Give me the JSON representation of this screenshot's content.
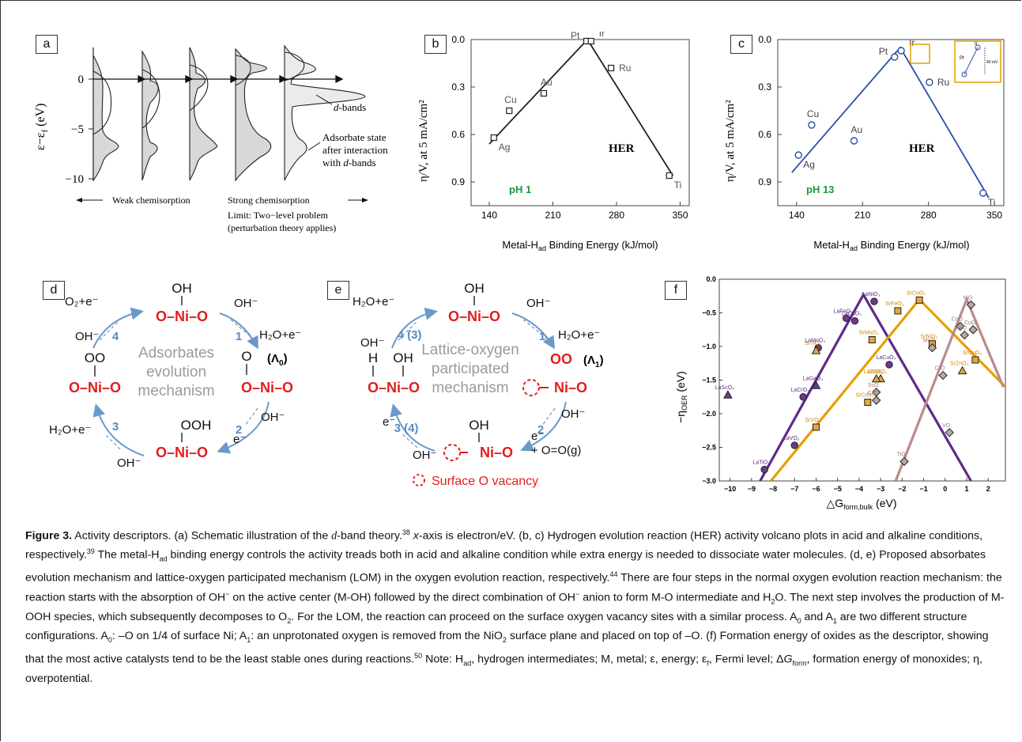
{
  "figure": {
    "labels": {
      "a": "a",
      "b": "b",
      "c": "c",
      "d": "d",
      "e": "e",
      "f": "f"
    }
  },
  "panel_a": {
    "ylabel": "ε−ε",
    "ylabel_sub": "f",
    "ylabel_unit": "(eV)",
    "yticks": [
      "0",
      "−5",
      "−10"
    ],
    "annot_dbands_pre": "d",
    "annot_dbands_post": "-bands",
    "annot_ads1": "Adsorbate state",
    "annot_ads2": "after interaction",
    "annot_ads3_pre": "with ",
    "annot_ads3_d": "d",
    "annot_ads3_post": "-bands",
    "weak": "Weak chemisorption",
    "strong": "Strong chemisorption",
    "limit1": "Limit: Two−level problem",
    "limit2": "(perturbation theory applies)"
  },
  "panel_b": {
    "xlabel_pre": "Metal-H",
    "xlabel_sub": "ad",
    "xlabel_post": " Binding Energy (kJ/mol)",
    "ylabel": "η/V, at 5 mA/cm²",
    "reaction": "HER",
    "ph": "pH  1",
    "xticks": [
      "140",
      "210",
      "280",
      "350"
    ],
    "yticks": [
      "0.0",
      "0.3",
      "0.6",
      "0.9"
    ]
  },
  "panel_c": {
    "xlabel_pre": "Metal-H",
    "xlabel_sub": "ad",
    "xlabel_post": " Binding Energy (kJ/mol)",
    "ylabel": "η/V, at 5 mA/cm²",
    "reaction": "HER",
    "ph": "pH  13",
    "xticks": [
      "140",
      "210",
      "280",
      "350"
    ],
    "yticks": [
      "0.0",
      "0.3",
      "0.6",
      "0.9"
    ],
    "inset_pt": "Pt",
    "inset_ir": "Ir",
    "inset_mv": "40 mV"
  },
  "panel_d": {
    "top_oh": "OH",
    "top": "O–Ni–O",
    "right_o": "O",
    "right_lambda": "(Λ",
    "right_lambda_sub": "0",
    "right_lambda_close": ")",
    "right": "O–Ni–O",
    "bottom_ooh": "OOH",
    "bottom": "O–Ni–O",
    "left_oo": "OO",
    "left": "O–Ni–O",
    "center1": "Adsorbates",
    "center2": "evolution",
    "center3": "mechanism",
    "step1": "1",
    "step2": "2",
    "step3": "3",
    "step4": "4",
    "r_top_left": "O₂+e⁻",
    "r_top_right": "OH⁻",
    "r_right_top": "H₂O+e⁻",
    "r_right_bottom": "OH⁻",
    "r_bottom_right": "e⁻",
    "r_bottom_left": "OH⁻",
    "r_left_bottom": "H₂O+e⁻",
    "r_left_top": "OH⁻"
  },
  "panel_e": {
    "top_oh": "OH",
    "top": "O–Ni–O",
    "right_oo": "OO",
    "right_lambda": "(Λ",
    "right_lambda_sub": "1",
    "right_lambda_close": ")",
    "right_nio": "Ni–O",
    "bottom_oh": "OH",
    "bottom_nio": "Ni–O",
    "left_h": "H",
    "left_oh": "OH",
    "left": "O–Ni–O",
    "center1": "Lattice-oxygen",
    "center2": "participated",
    "center3": "mechanism",
    "step_tl": "4 (3)",
    "step_tr": "1",
    "step_br": "2",
    "step_bl": "3 (4)",
    "r_top_left": "H₂O+e⁻",
    "r_top_right": "OH⁻",
    "r_right_top": "H₂O+e⁻",
    "r_right_bottom": "OH⁻",
    "r_bottom_right1": "e⁻",
    "r_bottom_right2": "+ O=O(g)",
    "r_bottom_left": "OH⁻",
    "r_left_bottom": "e⁻",
    "r_left_top": "OH⁻",
    "vacancy_legend": "Surface O vacancy"
  },
  "panel_f": {
    "ylabel": "−η",
    "ylabel_sub": "OER",
    "ylabel_unit": " (eV)",
    "xlabel_pre": "△G",
    "xlabel_sub": "form,bulk",
    "xlabel_post": " (eV)",
    "xticks": [
      "−10",
      "−9",
      "−8",
      "−7",
      "−6",
      "−5",
      "−4",
      "−3",
      "−2",
      "−1",
      "0",
      "1",
      "2"
    ],
    "yticks": [
      "0.0",
      "−0.5",
      "−1.0",
      "−1.5",
      "−2.0",
      "−2.5",
      "−3.0"
    ]
  },
  "chart_data": [
    {
      "type": "scatter",
      "panel": "b",
      "xlabel": "Metal-Had Binding Energy (kJ/mol)",
      "ylabel": "η/V, at 5 mA/cm²",
      "xlim": [
        120,
        360
      ],
      "ylim": [
        0.0,
        1.05
      ],
      "y_inverted": true,
      "points": [
        {
          "label": "Ag",
          "x": 145,
          "y": 0.62
        },
        {
          "label": "Cu",
          "x": 162,
          "y": 0.45
        },
        {
          "label": "Au",
          "x": 200,
          "y": 0.34
        },
        {
          "label": "Pt",
          "x": 247,
          "y": 0.01
        },
        {
          "label": "Ir",
          "x": 252,
          "y": 0.01
        },
        {
          "label": "Ru",
          "x": 274,
          "y": 0.18
        },
        {
          "label": "Ti",
          "x": 338,
          "y": 0.86
        }
      ],
      "volcano": [
        [
          140,
          0.66
        ],
        [
          248,
          0.0
        ],
        [
          342,
          0.86
        ]
      ]
    },
    {
      "type": "scatter",
      "panel": "c",
      "xlabel": "Metal-Had Binding Energy (kJ/mol)",
      "ylabel": "η/V, at 5 mA/cm²",
      "xlim": [
        120,
        360
      ],
      "ylim": [
        0.0,
        1.05
      ],
      "y_inverted": true,
      "points": [
        {
          "label": "Ag",
          "x": 142,
          "y": 0.73
        },
        {
          "label": "Cu",
          "x": 156,
          "y": 0.54
        },
        {
          "label": "Au",
          "x": 201,
          "y": 0.64
        },
        {
          "label": "Pt",
          "x": 244,
          "y": 0.11
        },
        {
          "label": "Ir",
          "x": 251,
          "y": 0.07
        },
        {
          "label": "Ru",
          "x": 281,
          "y": 0.27
        },
        {
          "label": "Ti",
          "x": 338,
          "y": 0.97
        }
      ],
      "volcano": [
        [
          135,
          0.84
        ],
        [
          250,
          0.05
        ],
        [
          344,
          1.0
        ]
      ]
    },
    {
      "type": "scatter",
      "panel": "f",
      "xlabel": "△G form,bulk (eV)",
      "ylabel": "−η OER (eV)",
      "xlim": [
        -10.5,
        2.8
      ],
      "ylim": [
        -3.0,
        0.0
      ],
      "series": [
        {
          "color": "#5e2a8c",
          "lines": [
            [
              [
                -8.6,
                -3.0
              ],
              [
                -3.8,
                -0.23
              ],
              [
                1.2,
                -3.0
              ]
            ]
          ],
          "points": [
            {
              "label": "LaNiO₃",
              "x": -3.3,
              "y": -0.33,
              "m": "o"
            },
            {
              "label": "LaFeO₃",
              "x": -4.6,
              "y": -0.58,
              "m": "o"
            },
            {
              "label": "LaCoO₃",
              "x": -4.2,
              "y": -0.62,
              "m": "o"
            },
            {
              "label": "LaMnO₃",
              "x": -5.9,
              "y": -1.02,
              "m": "o"
            },
            {
              "label": "LaCuO₃",
              "x": -2.6,
              "y": -1.27,
              "m": "o"
            },
            {
              "label": "LaGaO₃",
              "x": -6.0,
              "y": -1.58,
              "m": "^"
            },
            {
              "label": "LaCrO₃",
              "x": -6.6,
              "y": -1.75,
              "m": "o"
            },
            {
              "label": "LaScO₃",
              "x": -10.1,
              "y": -1.72,
              "m": "^"
            },
            {
              "label": "LaVO₃",
              "x": -7.0,
              "y": -2.47,
              "m": "o"
            },
            {
              "label": "LaTiO₃",
              "x": -8.4,
              "y": -2.83,
              "m": "o"
            }
          ]
        },
        {
          "color": "#e69f00",
          "lines": [
            [
              [
                -8.1,
                -3.0
              ],
              [
                -1.2,
                -0.3
              ],
              [
                2.8,
                -1.6
              ]
            ]
          ],
          "points": [
            {
              "label": "SrCoO₃",
              "x": -1.2,
              "y": -0.31,
              "m": "s"
            },
            {
              "label": "SrFeO₃",
              "x": -2.2,
              "y": -0.47,
              "m": "s"
            },
            {
              "label": "SrMnO₃",
              "x": -3.4,
              "y": -0.9,
              "m": "s"
            },
            {
              "label": "SrNiO₃",
              "x": -0.6,
              "y": -0.96,
              "m": "s"
            },
            {
              "label": "SrTiO₃",
              "x": -6.0,
              "y": -1.06,
              "m": "^"
            },
            {
              "label": "SrCuO₃",
              "x": 1.4,
              "y": -1.2,
              "m": "s"
            },
            {
              "label": "SrZnO₃",
              "x": 0.8,
              "y": -1.36,
              "m": "^"
            },
            {
              "label": "SrGeO₃",
              "x": -3.0,
              "y": -1.48,
              "m": "^"
            },
            {
              "label": "LaZnO₃",
              "x": -3.2,
              "y": -1.48,
              "m": "^"
            },
            {
              "label": "SrCrO₃",
              "x": -3.6,
              "y": -1.83,
              "m": "s"
            },
            {
              "label": "SrVO₃",
              "x": -6.0,
              "y": -2.2,
              "m": "s"
            }
          ]
        },
        {
          "color": "#b98b8b",
          "lines": [
            [
              [
                -2.3,
                -3.0
              ],
              [
                1.0,
                -0.3
              ],
              [
                2.7,
                -1.6
              ]
            ]
          ],
          "points": [
            {
              "label": "NiO",
              "x": 1.2,
              "y": -0.38,
              "m": "d"
            },
            {
              "label": "CoO",
              "x": 0.7,
              "y": -0.7,
              "m": "d"
            },
            {
              "label": "CuO",
              "x": 1.3,
              "y": -0.75,
              "m": "d"
            },
            {
              "label": "FeO",
              "x": 0.9,
              "y": -0.83,
              "m": "d"
            },
            {
              "label": "MnO",
              "x": -0.6,
              "y": -1.02,
              "m": "d"
            },
            {
              "label": "CrO",
              "x": -0.1,
              "y": -1.43,
              "m": "d"
            },
            {
              "label": "ScO",
              "x": -3.2,
              "y": -1.68,
              "m": "d"
            },
            {
              "label": "CaO",
              "x": -3.2,
              "y": -1.8,
              "m": "d"
            },
            {
              "label": "VO",
              "x": 0.2,
              "y": -2.28,
              "m": "d"
            },
            {
              "label": "TiO",
              "x": -1.9,
              "y": -2.71,
              "m": "d"
            }
          ]
        }
      ]
    }
  ],
  "caption": {
    "fig": "Figure 3.",
    "s1": " Activity descriptors. (a) Schematic illustration of the ",
    "d": "d",
    "s2": "-band theory.",
    "ref38": "38",
    "s3": " ",
    "xaxis": "x",
    "s4": "-axis is electron/eV. (b, c) Hydrogen evolution reaction (HER) activity volcano plots in acid and alkaline conditions, respectively.",
    "ref39": "39",
    "s5": " The metal-H",
    "s5sub": "ad",
    "s6": " binding energy controls the activity treads both in acid and alkaline condition while extra energy is needed to dissociate water molecules. (d, e) Proposed absorbates evolution mechanism and lattice-oxygen participated mechanism (LOM) in the oxygen evolution reaction, respectively.",
    "ref44": "44",
    "s7": " There are four steps in the normal oxygen evolution reaction mechanism: the reaction starts with the absorption of OH",
    "s7sup": "−",
    "s8": " on the active center (M-OH) followed by the direct combination of OH",
    "s8sup": "−",
    "s9": " anion to form M-O intermediate and H",
    "s9sub": "2",
    "s10": "O. The next step involves the production of M-OOH species, which subsequently decomposes to O",
    "s10sub": "2",
    "s11": ". For the LOM, the reaction can proceed on the surface oxygen vacancy sites with a similar process. A",
    "s11sub": "0",
    "s12": " and A",
    "s12sub": "1",
    "s13": " are two different structure configurations. A",
    "s13sub": "0",
    "s14": ": –O on 1/4 of surface Ni; A",
    "s14sub": "1",
    "s15": ": an unprotonated oxygen is removed from the NiO",
    "s15sub": "2",
    "s16": " surface plane and placed on top of –O. (f) Formation energy of oxides as the descriptor, showing that the most active catalysts tend to be the least stable ones during reactions.",
    "ref50": "50",
    "s17": " Note: H",
    "s17sub": "ad",
    "s18": ", hydrogen intermediates; M, metal; ε, energy; ε",
    "s18sub": "f",
    "s19": ", Fermi level; Δ",
    "s19G": "G",
    "s19sub": "form",
    "s20": ", formation energy of monoxides; η, overpotential."
  }
}
